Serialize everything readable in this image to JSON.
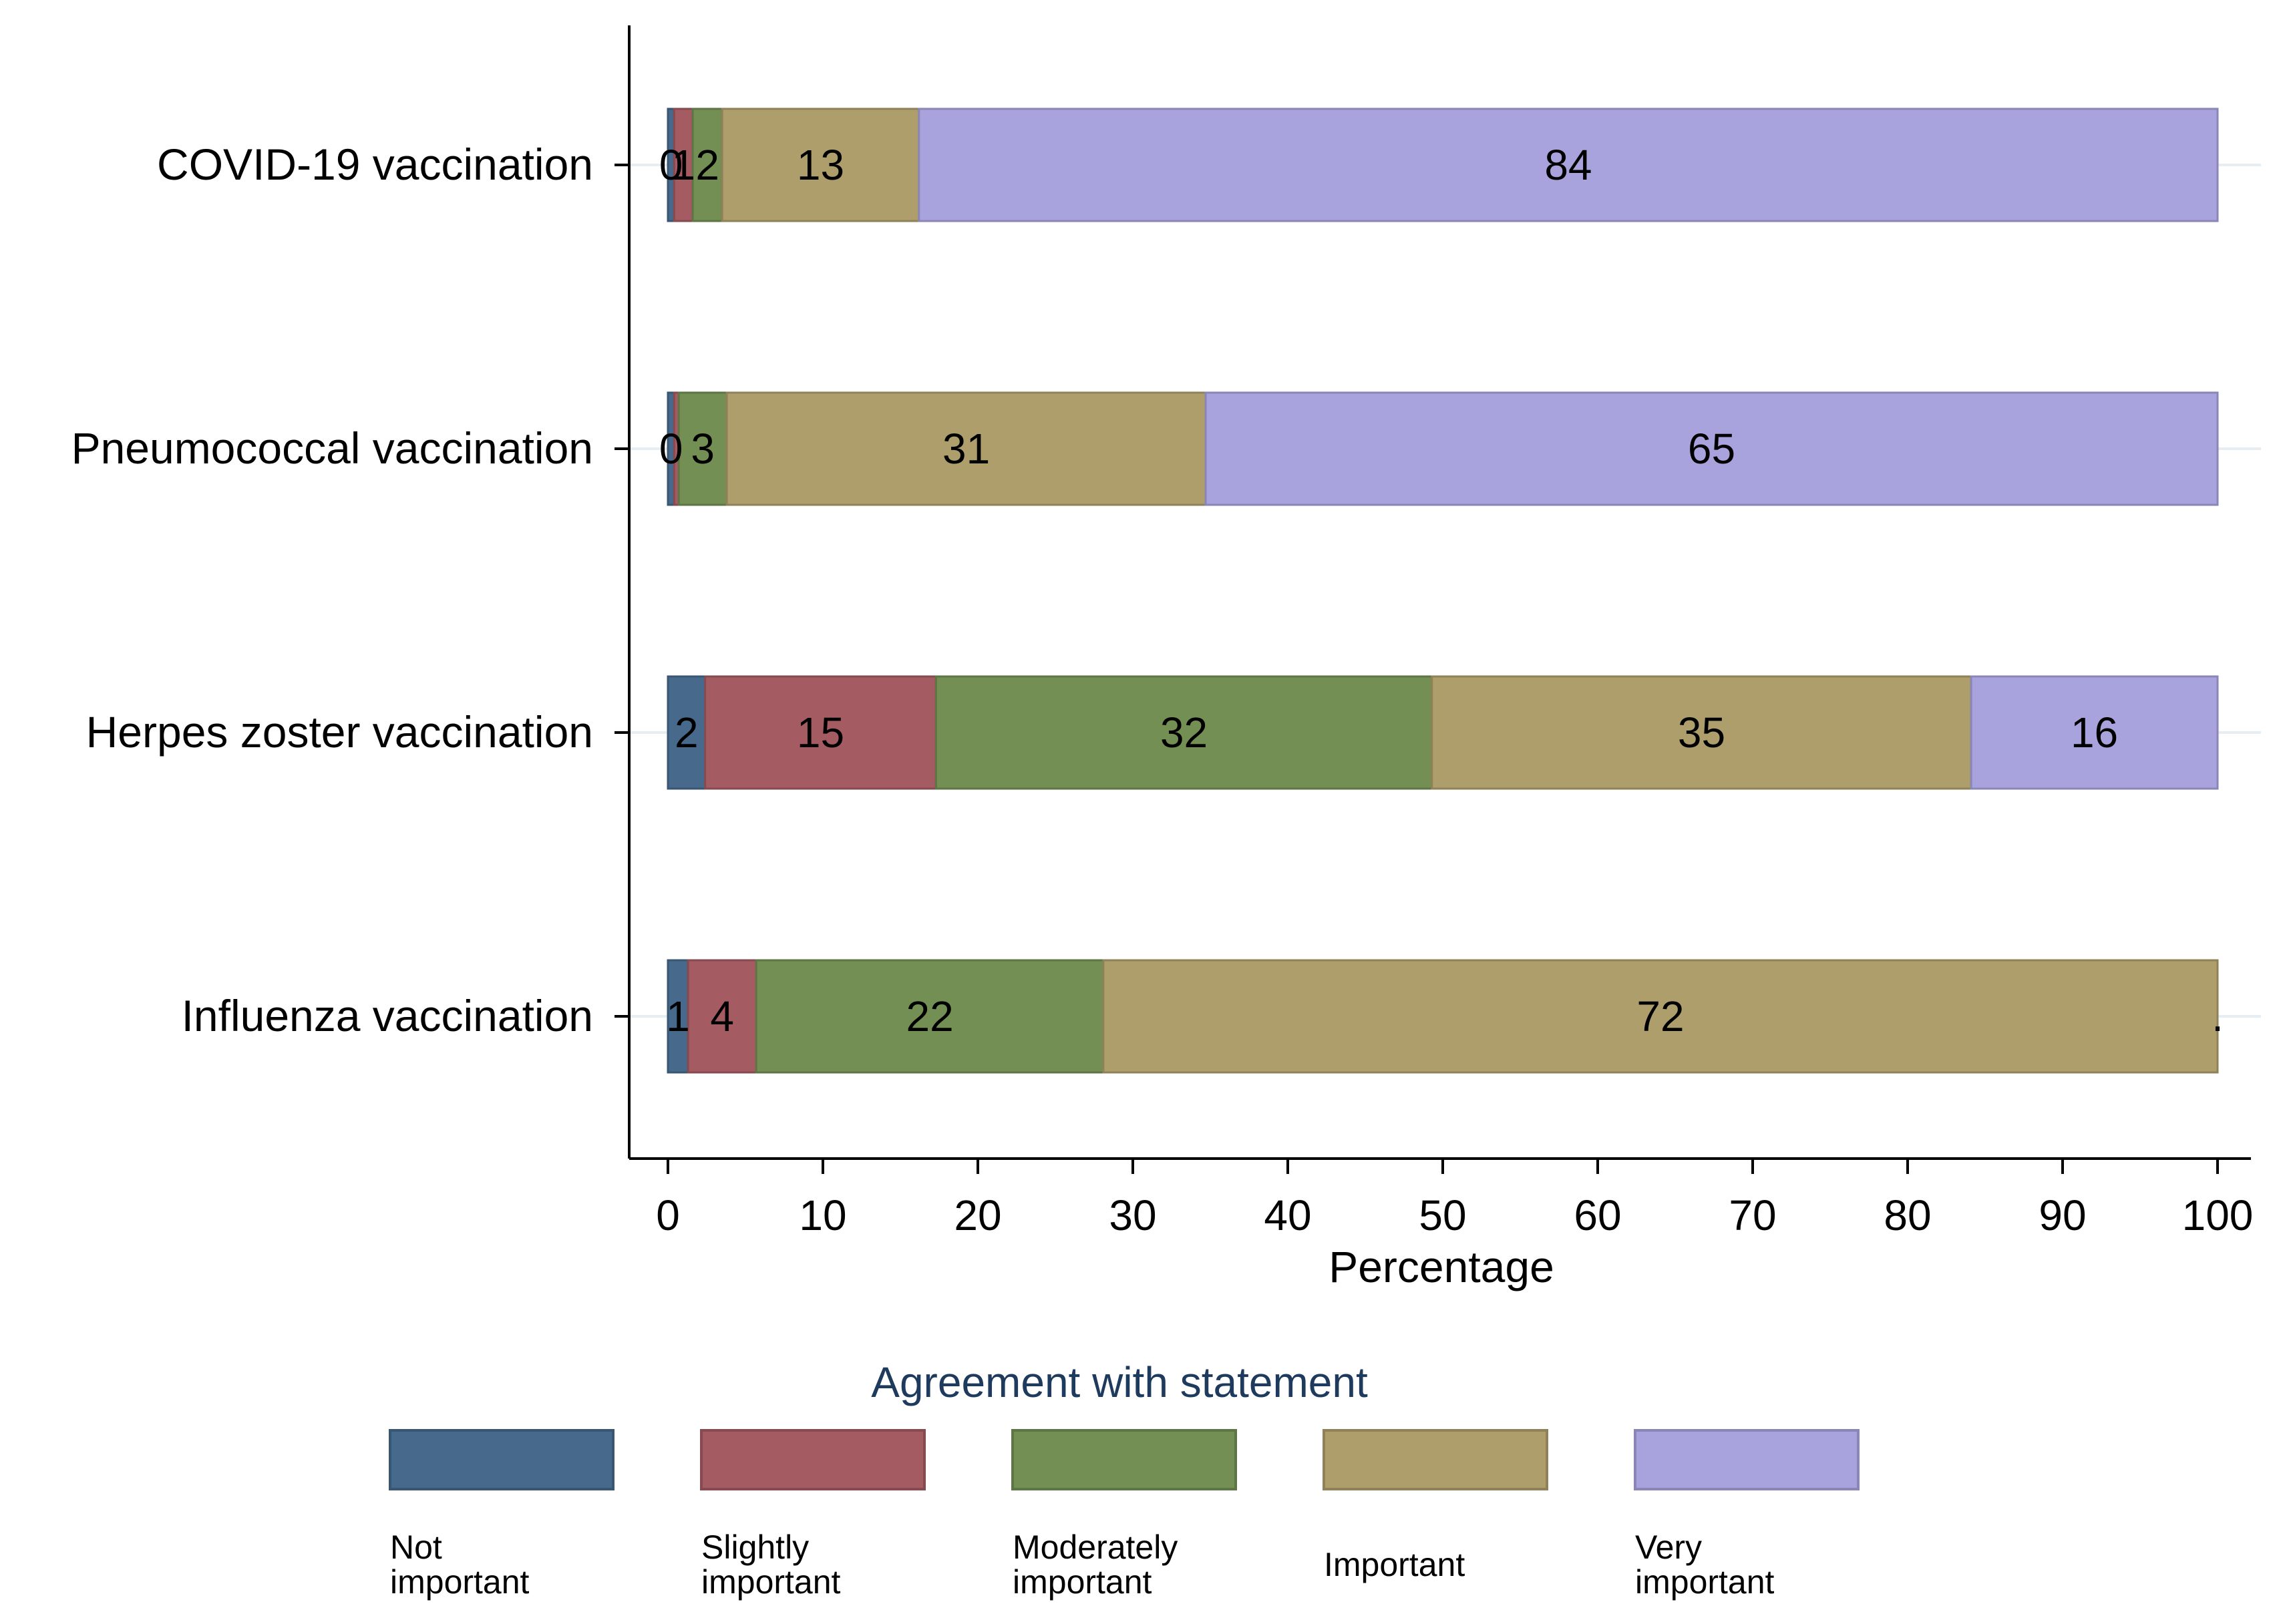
{
  "chart_data": {
    "type": "bar",
    "orientation": "horizontal",
    "stacked": true,
    "categories": [
      "COVID-19 vaccination",
      "Pneumococcal vaccination",
      "Herpes zoster vaccination",
      "Influenza vaccination"
    ],
    "series": [
      {
        "name": "Not important",
        "color": "#46698c",
        "values": [
          0.4,
          0.4,
          2.4,
          1.3
        ],
        "labels": [
          "0",
          "0",
          "2",
          "1"
        ]
      },
      {
        "name": "Slightly important",
        "color": "#a45b62",
        "values": [
          1.2,
          0.3,
          14.9,
          4.4
        ],
        "labels": [
          "1",
          "",
          "15",
          "4"
        ]
      },
      {
        "name": "Moderately important",
        "color": "#738f54",
        "values": [
          1.9,
          3.1,
          32.0,
          22.4
        ],
        "labels": [
          "2",
          "3",
          "32",
          "22"
        ]
      },
      {
        "name": "Important",
        "color": "#ae9e6b",
        "values": [
          12.7,
          30.9,
          34.8,
          71.9
        ],
        "labels": [
          "13",
          "31",
          "35",
          "72"
        ]
      },
      {
        "name": "Very important",
        "color": "#a8a3dd",
        "values": [
          83.8,
          65.3,
          15.9,
          0.0
        ],
        "labels": [
          "84",
          "65",
          "16",
          "."
        ]
      }
    ],
    "xlabel": "Percentage",
    "xlim": [
      0,
      100
    ],
    "xticks": [
      "0",
      "10",
      "20",
      "30",
      "40",
      "50",
      "60",
      "70",
      "80",
      "90",
      "100"
    ],
    "legend": {
      "title": "Agreement with statement",
      "position": "bottom",
      "items": [
        {
          "label_lines": [
            "Not",
            "important"
          ]
        },
        {
          "label_lines": [
            "Slightly",
            "important"
          ]
        },
        {
          "label_lines": [
            "Moderately",
            "important"
          ]
        },
        {
          "label_lines": [
            "Important"
          ]
        },
        {
          "label_lines": [
            "Very",
            "important"
          ]
        }
      ]
    }
  }
}
